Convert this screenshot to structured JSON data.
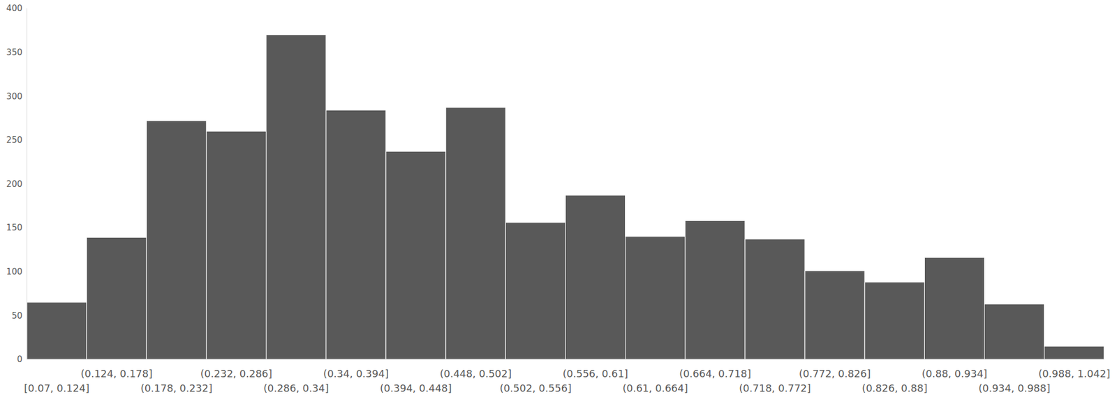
{
  "chart_data": {
    "type": "bar",
    "categories": [
      "[0.07, 0.124]",
      "(0.124, 0.178]",
      "(0.178, 0.232]",
      "(0.232, 0.286]",
      "(0.286, 0.34]",
      "(0.34, 0.394]",
      "(0.394, 0.448]",
      "(0.448, 0.502]",
      "(0.502, 0.556]",
      "(0.556, 0.61]",
      "(0.61, 0.664]",
      "(0.664, 0.718]",
      "(0.718, 0.772]",
      "(0.772, 0.826]",
      "(0.826, 0.88]",
      "(0.88, 0.934]",
      "(0.934, 0.988]",
      "(0.988, 1.042]"
    ],
    "values": [
      65,
      139,
      272,
      260,
      370,
      284,
      237,
      287,
      156,
      187,
      140,
      158,
      137,
      101,
      88,
      116,
      63,
      15
    ],
    "color": "#595959",
    "ylim": [
      0,
      400
    ],
    "yticks": [
      0,
      50,
      100,
      150,
      200,
      250,
      300,
      350,
      400
    ],
    "grid": false
  }
}
